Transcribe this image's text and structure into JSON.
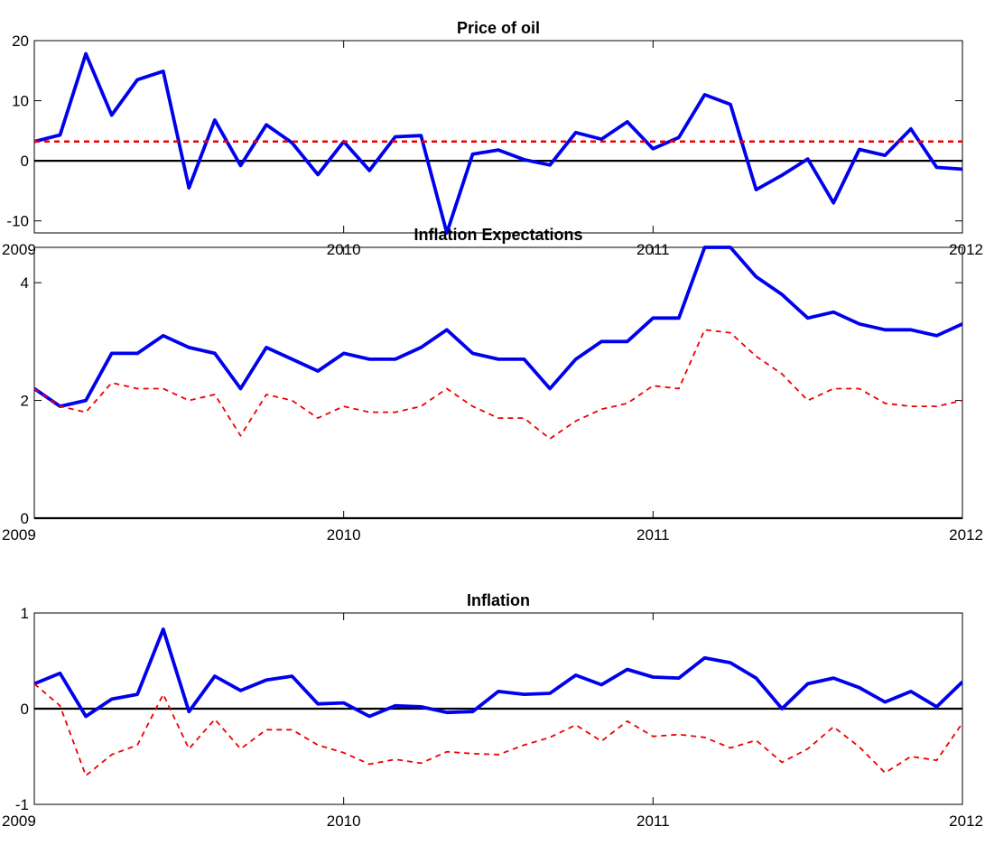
{
  "chart_data": [
    {
      "type": "line",
      "title": "Price of oil",
      "xlabel": "",
      "ylabel": "",
      "xlim": [
        2009,
        2012
      ],
      "ylim": [
        -12,
        20
      ],
      "x_ticks": [
        2009,
        2010,
        2011,
        2012
      ],
      "x_tick_labels": [
        "2009",
        "2010",
        "2011",
        "2012"
      ],
      "y_ticks": [
        -10,
        0,
        10,
        20
      ],
      "y_tick_labels": [
        "-10",
        "0",
        "10",
        "20"
      ],
      "zero_line": true,
      "grid": false,
      "series": [
        {
          "style": "solid-thick",
          "color": "#0000ee",
          "x": [
            2009.0,
            2009.0833,
            2009.1667,
            2009.25,
            2009.3333,
            2009.4167,
            2009.5,
            2009.5833,
            2009.6667,
            2009.75,
            2009.8333,
            2009.9167,
            2010.0,
            2010.0833,
            2010.1667,
            2010.25,
            2010.3333,
            2010.4167,
            2010.5,
            2010.5833,
            2010.6667,
            2010.75,
            2010.8333,
            2010.9167,
            2011.0,
            2011.0833,
            2011.1667,
            2011.25,
            2011.3333,
            2011.4167,
            2011.5,
            2011.5833,
            2011.6667,
            2011.75,
            2011.8333,
            2011.9167,
            2012.0
          ],
          "values": [
            3.2,
            4.3,
            17.8,
            7.6,
            13.5,
            14.9,
            -4.5,
            6.8,
            -0.8,
            6.0,
            3.0,
            -2.3,
            3.2,
            -1.6,
            4.0,
            4.2,
            -12.0,
            1.1,
            1.8,
            0.2,
            -0.7,
            4.7,
            3.6,
            6.5,
            2.0,
            3.9,
            11.0,
            9.4,
            -4.8,
            -2.4,
            0.3,
            -7.0,
            1.9,
            0.9,
            5.3,
            -1.1,
            -1.4
          ]
        },
        {
          "style": "dashed",
          "color": "#ee0000",
          "x": [
            2009.0,
            2012.0
          ],
          "values": [
            3.2,
            3.2
          ]
        }
      ]
    },
    {
      "type": "line",
      "title": "Inflation Expectations",
      "xlabel": "",
      "ylabel": "",
      "xlim": [
        2009,
        2012
      ],
      "ylim": [
        0,
        4.6
      ],
      "x_ticks": [
        2009,
        2010,
        2011,
        2012
      ],
      "x_tick_labels": [
        "2009",
        "2010",
        "2011",
        "2012"
      ],
      "y_ticks": [
        0,
        2,
        4
      ],
      "y_tick_labels": [
        "0",
        "2",
        "4"
      ],
      "zero_line": true,
      "grid": false,
      "series": [
        {
          "style": "solid-thick",
          "color": "#0000ee",
          "x": [
            2009.0,
            2009.0833,
            2009.1667,
            2009.25,
            2009.3333,
            2009.4167,
            2009.5,
            2009.5833,
            2009.6667,
            2009.75,
            2009.8333,
            2009.9167,
            2010.0,
            2010.0833,
            2010.1667,
            2010.25,
            2010.3333,
            2010.4167,
            2010.5,
            2010.5833,
            2010.6667,
            2010.75,
            2010.8333,
            2010.9167,
            2011.0,
            2011.0833,
            2011.1667,
            2011.25,
            2011.3333,
            2011.4167,
            2011.5,
            2011.5833,
            2011.6667,
            2011.75,
            2011.8333,
            2011.9167,
            2012.0
          ],
          "values": [
            2.2,
            1.9,
            2.0,
            2.8,
            2.8,
            3.1,
            2.9,
            2.8,
            2.2,
            2.9,
            2.7,
            2.5,
            2.8,
            2.7,
            2.7,
            2.9,
            3.2,
            2.8,
            2.7,
            2.7,
            2.2,
            2.7,
            3.0,
            3.0,
            3.4,
            3.4,
            4.6,
            4.6,
            4.1,
            3.8,
            3.4,
            3.5,
            3.3,
            3.2,
            3.2,
            3.1,
            3.3
          ]
        },
        {
          "style": "dashed",
          "color": "#ee0000",
          "x": [
            2009.0,
            2009.0833,
            2009.1667,
            2009.25,
            2009.3333,
            2009.4167,
            2009.5,
            2009.5833,
            2009.6667,
            2009.75,
            2009.8333,
            2009.9167,
            2010.0,
            2010.0833,
            2010.1667,
            2010.25,
            2010.3333,
            2010.4167,
            2010.5,
            2010.5833,
            2010.6667,
            2010.75,
            2010.8333,
            2010.9167,
            2011.0,
            2011.0833,
            2011.1667,
            2011.25,
            2011.3333,
            2011.4167,
            2011.5,
            2011.5833,
            2011.6667,
            2011.75,
            2011.8333,
            2011.9167,
            2012.0
          ],
          "values": [
            2.2,
            1.9,
            1.8,
            2.3,
            2.2,
            2.2,
            2.0,
            2.1,
            1.4,
            2.1,
            2.0,
            1.7,
            1.9,
            1.8,
            1.8,
            1.9,
            2.2,
            1.9,
            1.7,
            1.7,
            1.35,
            1.65,
            1.85,
            1.95,
            2.25,
            2.2,
            3.2,
            3.15,
            2.75,
            2.45,
            2.0,
            2.2,
            2.2,
            1.95,
            1.9,
            1.9,
            2.0
          ]
        }
      ]
    },
    {
      "type": "line",
      "title": "Inflation",
      "xlabel": "",
      "ylabel": "",
      "xlim": [
        2009,
        2012
      ],
      "ylim": [
        -1,
        1
      ],
      "x_ticks": [
        2009,
        2010,
        2011,
        2012
      ],
      "x_tick_labels": [
        "2009",
        "2010",
        "2011",
        "2012"
      ],
      "y_ticks": [
        -1,
        0,
        1
      ],
      "y_tick_labels": [
        "-1",
        "0",
        "1"
      ],
      "zero_line": true,
      "grid": false,
      "series": [
        {
          "style": "solid-thick",
          "color": "#0000ee",
          "x": [
            2009.0,
            2009.0833,
            2009.1667,
            2009.25,
            2009.3333,
            2009.4167,
            2009.5,
            2009.5833,
            2009.6667,
            2009.75,
            2009.8333,
            2009.9167,
            2010.0,
            2010.0833,
            2010.1667,
            2010.25,
            2010.3333,
            2010.4167,
            2010.5,
            2010.5833,
            2010.6667,
            2010.75,
            2010.8333,
            2010.9167,
            2011.0,
            2011.0833,
            2011.1667,
            2011.25,
            2011.3333,
            2011.4167,
            2011.5,
            2011.5833,
            2011.6667,
            2011.75,
            2011.8333,
            2011.9167,
            2012.0
          ],
          "values": [
            0.26,
            0.37,
            -0.08,
            0.1,
            0.15,
            0.83,
            -0.03,
            0.34,
            0.19,
            0.3,
            0.34,
            0.05,
            0.06,
            -0.08,
            0.03,
            0.02,
            -0.04,
            -0.03,
            0.18,
            0.15,
            0.16,
            0.35,
            0.25,
            0.41,
            0.33,
            0.32,
            0.53,
            0.48,
            0.32,
            0.0,
            0.26,
            0.32,
            0.22,
            0.07,
            0.18,
            0.02,
            0.28
          ]
        },
        {
          "style": "dashed",
          "color": "#ee0000",
          "x": [
            2009.0,
            2009.0833,
            2009.1667,
            2009.25,
            2009.3333,
            2009.4167,
            2009.5,
            2009.5833,
            2009.6667,
            2009.75,
            2009.8333,
            2009.9167,
            2010.0,
            2010.0833,
            2010.1667,
            2010.25,
            2010.3333,
            2010.4167,
            2010.5,
            2010.5833,
            2010.6667,
            2010.75,
            2010.8333,
            2010.9167,
            2011.0,
            2011.0833,
            2011.1667,
            2011.25,
            2011.3333,
            2011.4167,
            2011.5,
            2011.5833,
            2011.6667,
            2011.75,
            2011.8333,
            2011.9167,
            2012.0
          ],
          "values": [
            0.26,
            0.03,
            -0.7,
            -0.48,
            -0.38,
            0.15,
            -0.42,
            -0.11,
            -0.42,
            -0.22,
            -0.22,
            -0.38,
            -0.46,
            -0.58,
            -0.53,
            -0.57,
            -0.45,
            -0.47,
            -0.48,
            -0.38,
            -0.3,
            -0.17,
            -0.34,
            -0.13,
            -0.29,
            -0.27,
            -0.3,
            -0.41,
            -0.33,
            -0.56,
            -0.42,
            -0.19,
            -0.4,
            -0.67,
            -0.5,
            -0.54,
            -0.15
          ]
        }
      ]
    }
  ]
}
